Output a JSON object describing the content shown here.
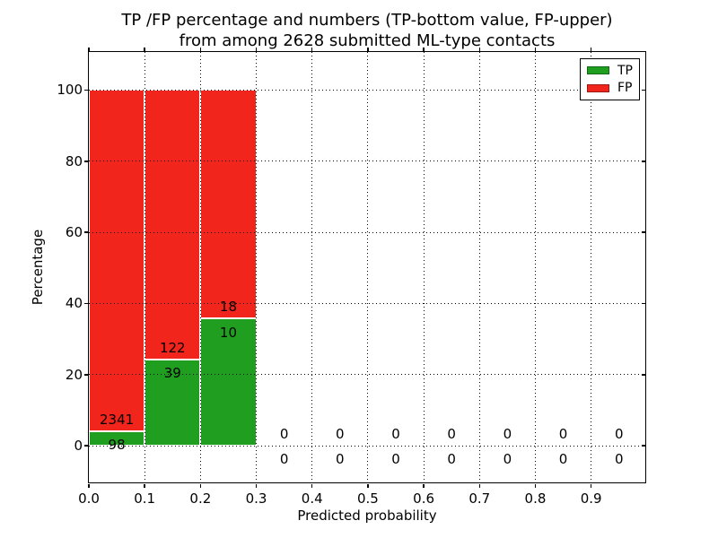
{
  "chart_data": {
    "type": "bar",
    "subtype": "stacked-percentage-histogram",
    "title_lines": [
      "TP /FP percentage and numbers (TP-bottom value, FP-upper)",
      "from among 2628 submitted ML-type contacts"
    ],
    "total_submitted_contacts": 2628,
    "xlabel": "Predicted probability",
    "ylabel": "Percentage",
    "bin_width": 0.1,
    "bin_starts": [
      0.0,
      0.1,
      0.2,
      0.3,
      0.4,
      0.5,
      0.6,
      0.7,
      0.8,
      0.9
    ],
    "series": [
      {
        "name": "TP",
        "color": "#1f9e1f",
        "counts": [
          98,
          39,
          10,
          0,
          0,
          0,
          0,
          0,
          0,
          0
        ]
      },
      {
        "name": "FP",
        "color": "#f2251c",
        "counts": [
          2341,
          122,
          18,
          0,
          0,
          0,
          0,
          0,
          0,
          0
        ]
      }
    ],
    "bar_note": "bars show TP percentage (green, bottom) and FP percentage (red, top) per bin, stacking to 100% for non-empty bins; count labels printed at the TP/FP boundary",
    "xticks": [
      "0.0",
      "0.1",
      "0.2",
      "0.3",
      "0.4",
      "0.5",
      "0.6",
      "0.7",
      "0.8",
      "0.9"
    ],
    "yticks": [
      0,
      20,
      40,
      60,
      80,
      100
    ],
    "xlim": [
      0.0,
      0.997
    ],
    "ylim": [
      -10.3,
      110.7
    ],
    "grid": "dotted",
    "legend_position": "upper right",
    "background_color": "#ffffff",
    "bar_edge_color": "#ffffff"
  }
}
